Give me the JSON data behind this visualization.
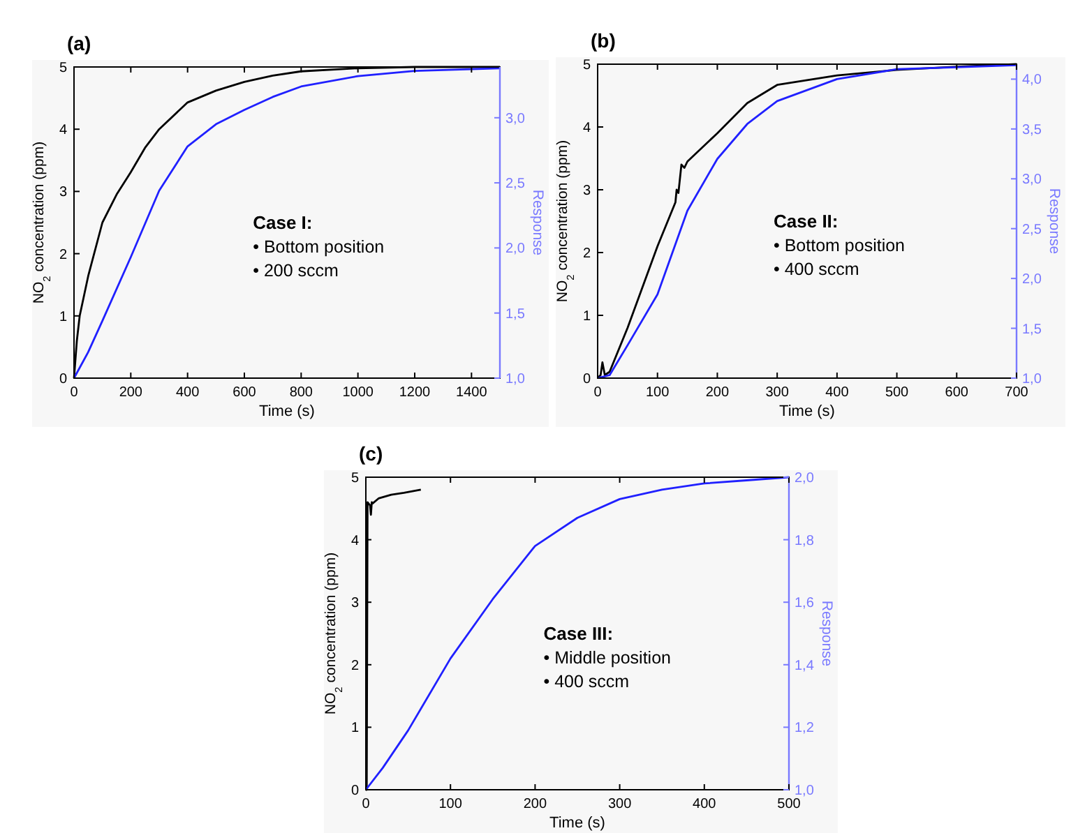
{
  "chart_data": [
    {
      "type": "line",
      "title": "(a)",
      "xlabel": "Time (s)",
      "ylabel": "NO$_{2}$ concentration (ppm)",
      "y2label": "Response",
      "xlim": [
        0,
        1500
      ],
      "xticks": [
        0,
        200,
        400,
        600,
        800,
        1000,
        1200,
        1400
      ],
      "ylim": [
        0,
        5
      ],
      "yticks": [
        0,
        1,
        2,
        3,
        4,
        5
      ],
      "y2lim": [
        1,
        3.39
      ],
      "y2ticks": [
        {
          "value": 1,
          "label": "1,0"
        },
        {
          "value": 1.5,
          "label": "1,5"
        },
        {
          "value": 2,
          "label": "2,0"
        },
        {
          "value": 2.5,
          "label": "2,5"
        },
        {
          "value": 3,
          "label": "3,0"
        }
      ],
      "annotations": [
        "Case I:",
        "•  Bottom position",
        "•  200 sccm"
      ],
      "series": [
        {
          "color": "#000000",
          "x": [
            0,
            10,
            20,
            50,
            100,
            150,
            200,
            250,
            300,
            400,
            500,
            600,
            700,
            800,
            1000,
            1200,
            1500
          ],
          "values": [
            0,
            0.6,
            1.0,
            1.64,
            2.5,
            2.95,
            3.31,
            3.7,
            4.0,
            4.43,
            4.62,
            4.76,
            4.86,
            4.93,
            4.98,
            5.0,
            5.0
          ]
        },
        {
          "color": "#2020ff",
          "axis": "y2",
          "x": [
            0,
            50,
            100,
            200,
            300,
            400,
            500,
            600,
            700,
            800,
            1000,
            1200,
            1500
          ],
          "values": [
            1.0,
            1.2,
            1.44,
            1.93,
            2.44,
            2.78,
            2.95,
            3.06,
            3.16,
            3.24,
            3.32,
            3.36,
            3.38
          ]
        }
      ]
    },
    {
      "type": "line",
      "title": "(b)",
      "xlabel": "Time (s)",
      "ylabel": "NO$_{2}$ concentration (ppm)",
      "y2label": "Response",
      "xlim": [
        0,
        700
      ],
      "xticks": [
        0,
        100,
        200,
        300,
        400,
        500,
        600,
        700
      ],
      "ylim": [
        0,
        5
      ],
      "yticks": [
        0,
        1,
        2,
        3,
        4,
        5
      ],
      "y2lim": [
        1,
        4.15
      ],
      "y2ticks": [
        {
          "value": 1,
          "label": "1,0"
        },
        {
          "value": 1.5,
          "label": "1,5"
        },
        {
          "value": 2,
          "label": "2,0"
        },
        {
          "value": 2.5,
          "label": "2,5"
        },
        {
          "value": 3,
          "label": "3,0"
        },
        {
          "value": 3.5,
          "label": "3,5"
        },
        {
          "value": 4,
          "label": "4,0"
        }
      ],
      "annotations": [
        "Case II:",
        "•  Bottom position",
        "•  400 sccm"
      ],
      "series": [
        {
          "color": "#000000",
          "x": [
            0,
            5,
            8,
            12,
            20,
            50,
            100,
            130,
            132,
            135,
            140,
            145,
            150,
            200,
            250,
            300,
            400,
            500,
            600,
            700
          ],
          "values": [
            0,
            0.05,
            0.25,
            0.05,
            0.1,
            0.8,
            2.1,
            2.8,
            3.0,
            2.95,
            3.4,
            3.35,
            3.45,
            3.9,
            4.38,
            4.67,
            4.82,
            4.91,
            4.96,
            5.0
          ]
        },
        {
          "color": "#2020ff",
          "axis": "y2",
          "x": [
            0,
            20,
            50,
            100,
            150,
            200,
            250,
            300,
            400,
            500,
            600,
            700
          ],
          "values": [
            1.0,
            1.03,
            1.33,
            1.84,
            2.68,
            3.2,
            3.55,
            3.78,
            4.0,
            4.1,
            4.12,
            4.14
          ]
        }
      ]
    },
    {
      "type": "line",
      "title": "(c)",
      "xlabel": "Time (s)",
      "ylabel": "NO$_{2}$ concentration (ppm)",
      "y2label": "Response",
      "xlim": [
        0,
        500
      ],
      "xticks": [
        0,
        100,
        200,
        300,
        400,
        500
      ],
      "ylim": [
        0,
        5
      ],
      "yticks": [
        0,
        1,
        2,
        3,
        4,
        5
      ],
      "y2lim": [
        1,
        2
      ],
      "y2ticks": [
        {
          "value": 1,
          "label": "1,0"
        },
        {
          "value": 1.2,
          "label": "1,2"
        },
        {
          "value": 1.4,
          "label": "1,4"
        },
        {
          "value": 1.6,
          "label": "1,6"
        },
        {
          "value": 1.8,
          "label": "1,8"
        },
        {
          "value": 2,
          "label": "2,0"
        }
      ],
      "annotations": [
        "Case III:",
        "•  Middle position",
        "•  400 sccm"
      ],
      "series": [
        {
          "color": "#000000",
          "x": [
            0,
            1,
            2,
            5,
            6,
            7,
            8,
            15,
            30,
            45,
            65
          ],
          "values": [
            0,
            0,
            4.6,
            4.55,
            4.4,
            4.6,
            4.58,
            4.66,
            4.72,
            4.75,
            4.8
          ]
        },
        {
          "color": "#2020ff",
          "axis": "y2",
          "x": [
            0,
            20,
            50,
            100,
            150,
            200,
            250,
            300,
            350,
            400,
            450,
            500
          ],
          "values": [
            1.0,
            1.07,
            1.19,
            1.42,
            1.61,
            1.78,
            1.87,
            1.93,
            1.96,
            1.98,
            1.99,
            2.0
          ]
        }
      ]
    }
  ]
}
